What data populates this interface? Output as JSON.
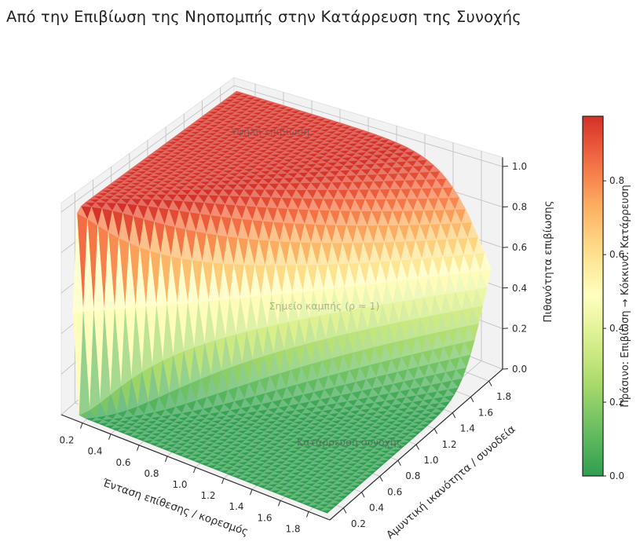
{
  "title": "Από την Επιβίωση της Νηοπομπής στην Κατάρρευση της Συνοχής",
  "chart_data": {
    "type": "surface",
    "title": "Από την Επιβίωση της Νηοπομπής στην Κατάρρευση της Συνοχής",
    "x_axis": {
      "label": "Ένταση επίθεσης / κορεσμός",
      "ticks": [
        0.2,
        0.4,
        0.6,
        0.8,
        1.0,
        1.2,
        1.4,
        1.6,
        1.8
      ],
      "axis_range": [
        0.05,
        1.95
      ],
      "data_range": [
        0.1,
        1.9
      ]
    },
    "y_axis": {
      "label": "Αμυντική ικανότητα / συνοδεία",
      "ticks": [
        0.2,
        0.4,
        0.6,
        0.8,
        1.0,
        1.2,
        1.4,
        1.6,
        1.8
      ],
      "axis_range": [
        0.05,
        1.95
      ],
      "data_range": [
        0.1,
        1.9
      ]
    },
    "z_axis": {
      "label": "Πιθανότητα επιβίωσης",
      "ticks": [
        0.0,
        0.2,
        0.4,
        0.6,
        0.8,
        1.0
      ],
      "range": [
        0,
        1.045
      ]
    },
    "surface_model": {
      "description": "Survival probability falls off sigmoidally as the attack/defense ratio rho = x/y passes 1",
      "formula": "P(x,y) = 1 / (1 + exp(k * (x/y - 1)))",
      "k": 12,
      "grid_n": 40
    },
    "sample_z_grid": {
      "x": [
        0.2,
        0.4,
        0.6,
        0.8,
        1.0,
        1.2,
        1.4,
        1.6,
        1.8
      ],
      "y": [
        0.2,
        0.4,
        0.6,
        0.8,
        1.0,
        1.2,
        1.4,
        1.6,
        1.8
      ],
      "z": [
        [
          0.5,
          0.0,
          0.0,
          0.0,
          0.0,
          0.0,
          0.0,
          0.0,
          0.0
        ],
        [
          0.998,
          0.5,
          0.002,
          0.0,
          0.0,
          0.0,
          0.0,
          0.0,
          0.0
        ],
        [
          1.0,
          0.982,
          0.5,
          0.018,
          0.0,
          0.0,
          0.0,
          0.0,
          0.0
        ],
        [
          1.0,
          0.998,
          0.953,
          0.5,
          0.047,
          0.002,
          0.0,
          0.0,
          0.0
        ],
        [
          1.0,
          0.999,
          0.992,
          0.917,
          0.5,
          0.083,
          0.008,
          0.001,
          0.0
        ],
        [
          1.0,
          1.0,
          0.998,
          0.982,
          0.881,
          0.5,
          0.119,
          0.018,
          0.002
        ],
        [
          1.0,
          1.0,
          0.999,
          0.994,
          0.969,
          0.847,
          0.5,
          0.153,
          0.031
        ],
        [
          1.0,
          1.0,
          1.0,
          0.998,
          0.989,
          0.953,
          0.818,
          0.5,
          0.182
        ],
        [
          1.0,
          1.0,
          1.0,
          0.999,
          0.995,
          0.982,
          0.935,
          0.791,
          0.5
        ]
      ]
    },
    "annotations": [
      {
        "text": "Υψηλή επιβίωση",
        "x": 0.5,
        "y": 1.65,
        "z": 0.95,
        "opacity": 0.6
      },
      {
        "text": "Σημείο καμπής (ρ ≈ 1)",
        "x": 1.3,
        "y": 1.0,
        "z": 0.5,
        "opacity": 0.4
      },
      {
        "text": "Κατάρρευση συνοχής",
        "x": 1.8,
        "y": 0.5,
        "z": 0.15,
        "opacity": 0.65
      }
    ],
    "colorbar": {
      "label": "Πράσινο: Επιβίωση → Κόκκινο: Κατάρρευση",
      "ticks": [
        0.0,
        0.2,
        0.4,
        0.6,
        0.8
      ],
      "vmin": 0.0,
      "vmax": 0.975,
      "top_color": "#d33027",
      "bottom_color": "#2f9e4f"
    },
    "colormap": {
      "name": "RdYlGn_r",
      "stops": [
        [
          0.0,
          "#2f9e4f"
        ],
        [
          0.125,
          "#66bd63"
        ],
        [
          0.25,
          "#a6d96a"
        ],
        [
          0.375,
          "#d9ef8b"
        ],
        [
          0.5,
          "#ffffbf"
        ],
        [
          0.625,
          "#fee08b"
        ],
        [
          0.75,
          "#fdae61"
        ],
        [
          0.875,
          "#f46d43"
        ],
        [
          1.0,
          "#d33027"
        ]
      ]
    },
    "layout": {
      "grid": true,
      "pane_color": "#f2f2f3",
      "grid_color": "#c3c3c8",
      "axis_color": "#2b2b2b"
    }
  }
}
